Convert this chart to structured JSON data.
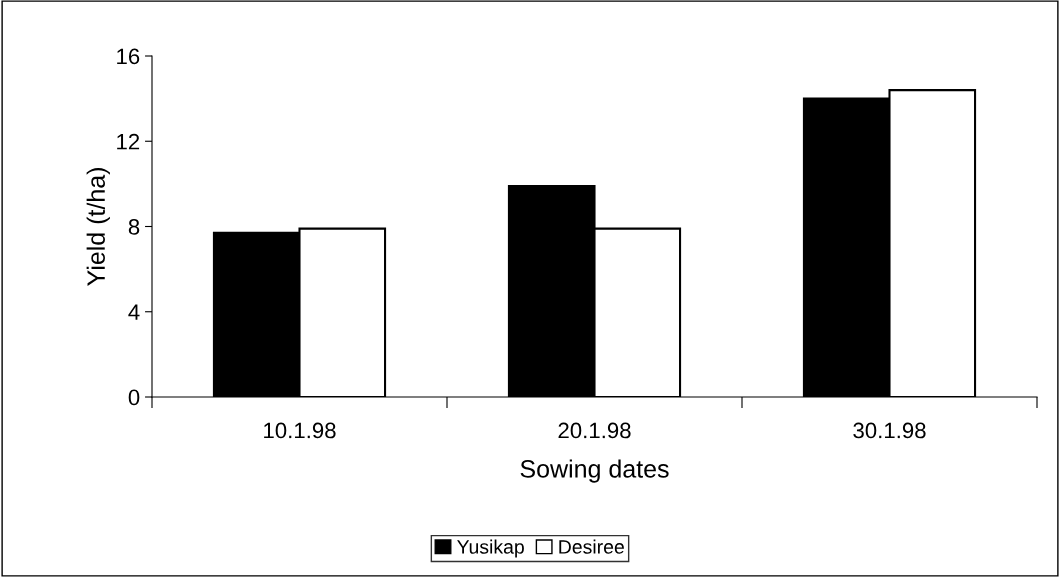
{
  "chart_data": {
    "type": "bar",
    "xlabel": "Sowing dates",
    "ylabel": "Yield (t/ha)",
    "categories": [
      "10.1.98",
      "20.1.98",
      "30.1.98"
    ],
    "series": [
      {
        "name": "Yusikap",
        "color": "#000000",
        "values": [
          7.7,
          9.9,
          14.0
        ]
      },
      {
        "name": "Desiree",
        "color": "#ffffff",
        "values": [
          7.9,
          7.9,
          14.4
        ]
      }
    ],
    "ylim": [
      0,
      16
    ],
    "yticks": [
      0,
      4,
      8,
      12,
      16
    ],
    "grid": false,
    "legend": "bottom"
  }
}
